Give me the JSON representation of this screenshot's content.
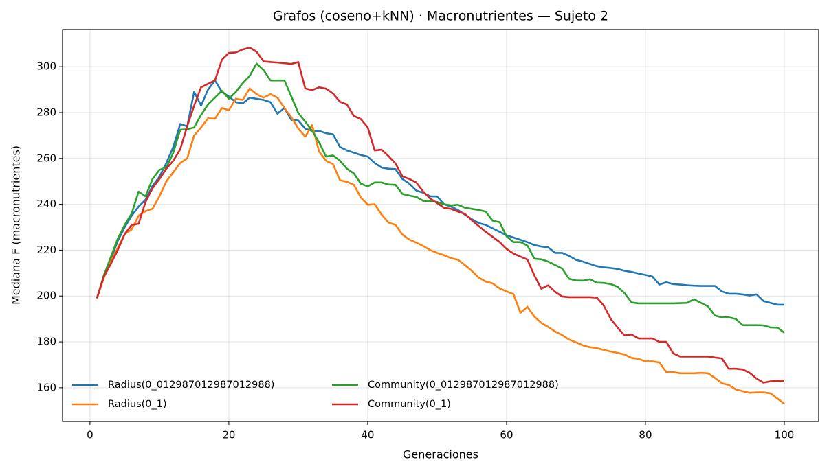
{
  "chart_data": {
    "type": "line",
    "title": "Grafos (coseno+kNN) · Macronutrientes — Sujeto 2",
    "x_label": "Generaciones",
    "y_label": "Mediana F (macronutrientes)",
    "x": [
      1,
      2,
      3,
      4,
      5,
      6,
      7,
      8,
      9,
      10,
      11,
      12,
      13,
      14,
      15,
      16,
      17,
      18,
      19,
      20,
      21,
      22,
      23,
      24,
      25,
      26,
      27,
      28,
      29,
      30,
      31,
      32,
      33,
      34,
      35,
      36,
      37,
      38,
      39,
      40,
      41,
      42,
      43,
      44,
      45,
      46,
      47,
      48,
      49,
      50,
      51,
      52,
      53,
      54,
      55,
      56,
      57,
      58,
      59,
      60,
      61,
      62,
      63,
      64,
      65,
      66,
      67,
      68,
      69,
      70,
      71,
      72,
      73,
      74,
      75,
      76,
      77,
      78,
      79,
      80,
      81,
      82,
      83,
      84,
      85,
      86,
      87,
      88,
      89,
      90,
      91,
      92,
      93,
      94,
      95,
      96,
      97,
      98,
      99,
      100
    ],
    "series": [
      {
        "name": "Radius(0_012987012987012988)",
        "color": "#1f77b4",
        "values": [
          199,
          209,
          216,
          224,
          230,
          235,
          239,
          242,
          248,
          252,
          258,
          265,
          275,
          274,
          289,
          283,
          290,
          294,
          289,
          287,
          284.5,
          284,
          286.5,
          286,
          285.5,
          284.5,
          279.5,
          282,
          276.8,
          276.5,
          273,
          272,
          272,
          271,
          270.5,
          265,
          263.5,
          262.5,
          261.5,
          260.8,
          258,
          256,
          255.5,
          255.3,
          251,
          249,
          246,
          245,
          243.5,
          243.4,
          240,
          239,
          237.5,
          235.5,
          233.5,
          231.8,
          231,
          229.5,
          228,
          226.5,
          225.5,
          224.5,
          223.5,
          222.2,
          221.6,
          221.2,
          218.8,
          218.8,
          217.5,
          215.8,
          215,
          214,
          213,
          212.5,
          212.2,
          211.8,
          211,
          210.5,
          209.8,
          209.2,
          208.5,
          205,
          206,
          205.2,
          205,
          204.7,
          204.5,
          204.4,
          204.4,
          204.4,
          202,
          201,
          201,
          200.7,
          200.2,
          200.7,
          197.8,
          197,
          196.2,
          196.2
        ]
      },
      {
        "name": "Radius(0_1)",
        "color": "#ff7f0e",
        "values": [
          199,
          208,
          215,
          221,
          227,
          229,
          235,
          237,
          238,
          243.5,
          250,
          254,
          258,
          260,
          270,
          273.5,
          277.5,
          277.3,
          282,
          281,
          286,
          285.5,
          290.5,
          288,
          286.5,
          288,
          286.5,
          282,
          278,
          273,
          269.5,
          274.5,
          263,
          259,
          257.5,
          250.5,
          249.8,
          248.5,
          243,
          239.8,
          240,
          235.5,
          232,
          231,
          226.8,
          224.6,
          223.3,
          221.8,
          220,
          218.8,
          217.8,
          216.5,
          215.8,
          213.5,
          211,
          208,
          206.3,
          205.5,
          203.3,
          202,
          200.8,
          192.7,
          195.3,
          191,
          188.3,
          186.5,
          184.5,
          183,
          181,
          179.8,
          178.5,
          177.7,
          177.3,
          176.5,
          175.8,
          175.2,
          174.5,
          173,
          172.6,
          171.5,
          171.5,
          171,
          166.8,
          166.8,
          166.3,
          166.3,
          166.3,
          166.5,
          166.3,
          164.3,
          162,
          161.2,
          159.3,
          158.5,
          157.8,
          158,
          158,
          157.6,
          155.3,
          153
        ]
      },
      {
        "name": "Community(0_012987012987012988)",
        "color": "#2ca02c",
        "values": [
          199,
          209,
          217,
          225,
          231,
          236,
          245.5,
          243.5,
          251,
          255,
          256,
          262.5,
          272.5,
          272.7,
          273.5,
          279,
          283.5,
          286.5,
          289.5,
          286,
          289,
          292.8,
          296,
          301.3,
          298.5,
          294,
          294,
          294,
          287,
          279.8,
          276,
          272,
          267,
          260.8,
          261.3,
          259,
          255.5,
          253.5,
          249,
          247.8,
          249.5,
          249.5,
          248.6,
          248.5,
          244.5,
          243.8,
          243.2,
          241.5,
          241.4,
          241,
          240,
          239.5,
          239.8,
          238.5,
          238,
          237.5,
          236.8,
          232.8,
          232.2,
          226,
          223.5,
          223.5,
          222,
          216.3,
          216,
          215,
          213.5,
          212,
          207.5,
          206.8,
          206.7,
          207.3,
          205.8,
          205.7,
          205.2,
          204,
          201.2,
          197.2,
          196.8,
          196.8,
          196.8,
          196.8,
          196.8,
          196.8,
          196.9,
          197,
          198.6,
          197,
          195.5,
          191.5,
          190.7,
          190.7,
          190,
          187.3,
          187.3,
          187.3,
          187.2,
          186.3,
          186.2,
          184
        ]
      },
      {
        "name": "Community(0_1)",
        "color": "#d62728",
        "values": [
          199,
          208.5,
          214,
          220,
          227,
          231,
          231.5,
          241,
          247,
          251,
          255.5,
          259,
          264,
          274,
          283,
          291,
          292.5,
          294,
          303,
          306,
          306.2,
          307.5,
          308.3,
          306.5,
          302.3,
          302,
          301.8,
          301.5,
          301.2,
          302,
          290.5,
          289.8,
          291,
          290.4,
          288.3,
          284.7,
          283.5,
          278.5,
          277.2,
          273.5,
          263.5,
          263.8,
          261,
          257.8,
          252.2,
          251,
          249.5,
          245.5,
          242.5,
          240.5,
          238.5,
          238,
          236.8,
          235.8,
          233,
          230.5,
          228,
          225.8,
          223.5,
          220.5,
          218.5,
          217.2,
          215.9,
          209,
          203.2,
          204.7,
          201.8,
          199.8,
          199.5,
          199.5,
          199.5,
          199.5,
          199.3,
          195.8,
          190,
          186.2,
          182.8,
          183.2,
          181.5,
          181.5,
          181.5,
          180,
          180,
          175,
          173.6,
          173.6,
          173.6,
          173.6,
          173.6,
          173.2,
          172.8,
          168.3,
          168.3,
          168,
          166.5,
          164,
          162.2,
          162.8,
          163,
          163
        ]
      }
    ],
    "xlim": [
      -3.95,
      104.95
    ],
    "xticks": [
      0,
      20,
      40,
      60,
      80,
      100
    ],
    "ylim": [
      145.3,
      316.2
    ],
    "yticks": [
      160,
      180,
      200,
      220,
      240,
      260,
      280,
      300
    ],
    "grid": true,
    "legend": "lower-left"
  }
}
